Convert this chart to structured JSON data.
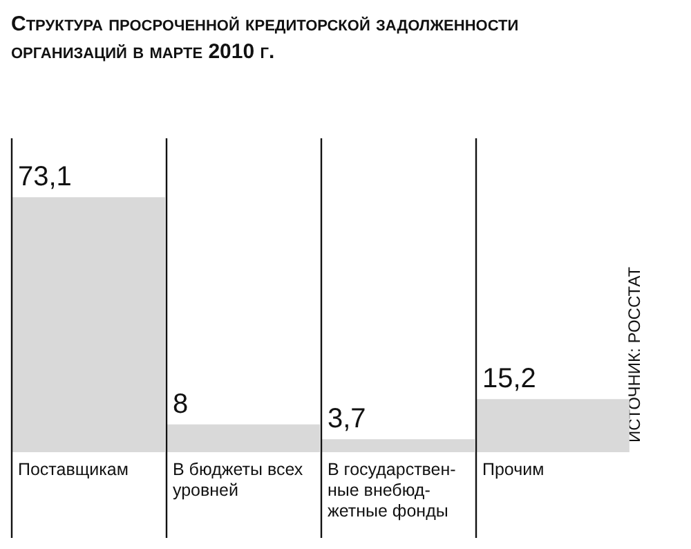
{
  "chart_data": {
    "type": "bar",
    "title": "Структура просроченной кредиторской задолженности организаций в марте 2010 г.",
    "categories": [
      "Поставщикам",
      "В бюджеты всех уровней",
      "В государствен-ные внебюд-жетные фонды",
      "Прочим"
    ],
    "values": [
      73.1,
      8,
      3.7,
      15.2
    ],
    "value_labels": [
      "73,1",
      "8",
      "3,7",
      "15,2"
    ],
    "color": "#d9d9d9",
    "grid": "x",
    "legend": false,
    "annotations": [
      "ИСТОЧНИК: РОССТАТ"
    ]
  }
}
